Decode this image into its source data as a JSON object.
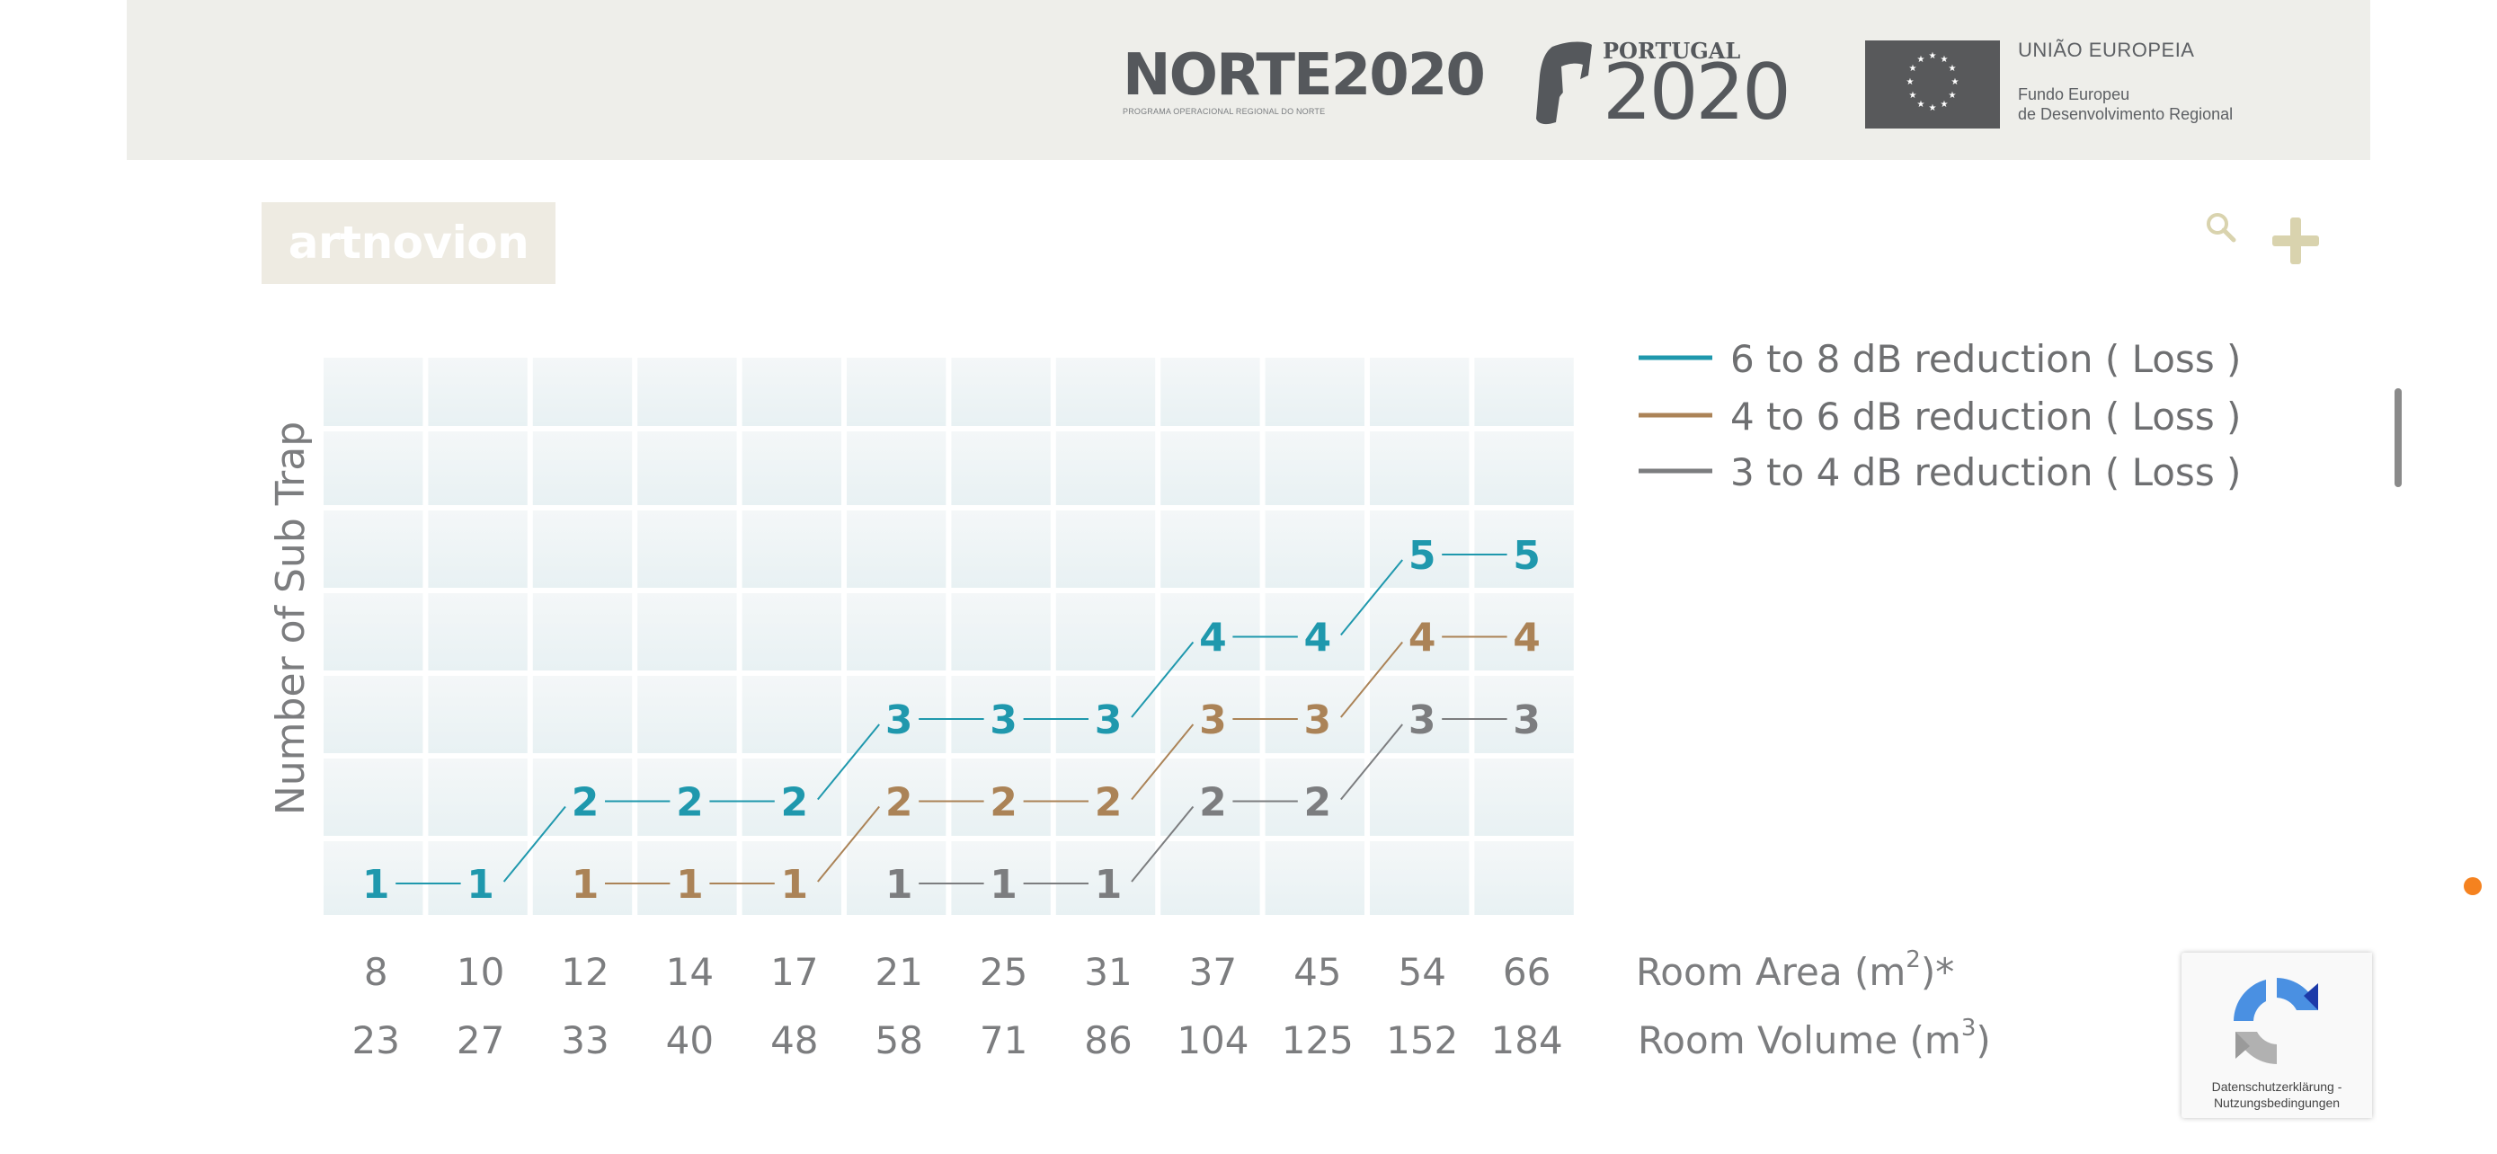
{
  "banner": {
    "norte_title": "NORTE2020",
    "norte_subtitle": "PROGRAMA OPERACIONAL REGIONAL DO NORTE",
    "portugal_country": "PORTUGAL",
    "portugal_year": "2020",
    "eu_title": "UNIÃO EUROPEIA",
    "eu_fund_line1": "Fundo Europeu",
    "eu_fund_line2": "de Desenvolvimento Regional"
  },
  "header": {
    "logo_text": "artnovion",
    "search_icon": "search-icon",
    "menu_icon": "plus-icon"
  },
  "recaptcha": {
    "privacy_line1": "Datenschutzerklärung -",
    "privacy_line2": "Nutzungsbedingungen"
  },
  "colors": {
    "teal": "#1f98ad",
    "brown": "#ab8357",
    "gray": "#7c7d7f",
    "accent_orange": "#f5821f",
    "icon_gold": "#d9d3ae"
  },
  "chart_data": {
    "type": "line",
    "ylabel": "Number of Sub Trap",
    "x_row1_label": "Room Area (m",
    "x_row1_sup": "2",
    "x_row1_suffix": ")*",
    "x_row2_label": "Room Volume (m",
    "x_row2_sup": "3",
    "x_row2_suffix": ")",
    "room_area": [
      "8",
      "10",
      "12",
      "14",
      "17",
      "21",
      "25",
      "31",
      "37",
      "45",
      "54",
      "66"
    ],
    "room_volume": [
      "23",
      "27",
      "33",
      "40",
      "48",
      "58",
      "71",
      "86",
      "104",
      "125",
      "152",
      "184"
    ],
    "ylim": [
      0,
      7
    ],
    "legend_position": "top-right",
    "series": [
      {
        "name": "6 to 8 dB reduction ( Loss )",
        "color": "#1f98ad",
        "values": [
          1,
          1,
          2,
          2,
          2,
          3,
          3,
          3,
          4,
          4,
          5,
          5
        ]
      },
      {
        "name": "4 to 6 dB reduction ( Loss )",
        "color": "#ab8357",
        "values": [
          null,
          null,
          1,
          1,
          1,
          2,
          2,
          2,
          3,
          3,
          4,
          4
        ]
      },
      {
        "name": "3 to 4 dB reduction ( Loss )",
        "color": "#7c7d7f",
        "values": [
          null,
          null,
          null,
          null,
          null,
          1,
          1,
          1,
          2,
          2,
          3,
          3
        ]
      }
    ]
  }
}
